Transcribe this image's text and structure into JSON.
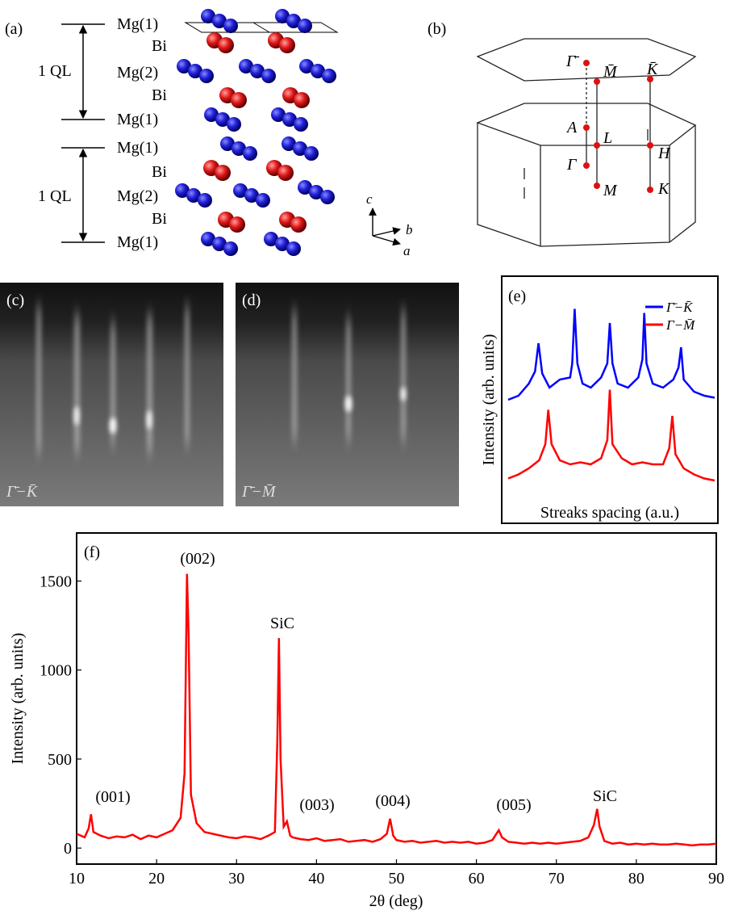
{
  "panel_labels": [
    "(a)",
    "(b)",
    "(c)",
    "(d)",
    "(e)",
    "(f)"
  ],
  "crystal_structure": {
    "layers": [
      "Mg(1)",
      "Bi",
      "Mg(2)",
      "Bi",
      "Mg(1)",
      "Mg(1)",
      "Bi",
      "Mg(2)",
      "Bi",
      "Mg(1)"
    ],
    "ql_labels": [
      "1 QL",
      "1 QL"
    ],
    "axes": [
      "c",
      "b",
      "a"
    ]
  },
  "brillouin_zone": {
    "points": [
      "Γ̄",
      "M̄",
      "K̄",
      "A",
      "L",
      "H",
      "Γ",
      "M",
      "K"
    ]
  },
  "rheed": {
    "labels": [
      "Γ̄−K̄",
      "Γ̄−M̄"
    ]
  },
  "chart_data": [
    {
      "type": "line",
      "xlabel": "Streaks spacing (a.u.)",
      "ylabel": "Intensity (arb. units)",
      "xlim": [
        0,
        100
      ],
      "ylim": [
        0,
        10
      ],
      "legend": "upper right",
      "series": [
        {
          "name": "Γ̄−K̄",
          "color": "#0000ff",
          "x": [
            0,
            5,
            10,
            13,
            14.7,
            16.5,
            20,
            25,
            30,
            31,
            32.2,
            33.5,
            36,
            40,
            45,
            48,
            49.2,
            50.5,
            53,
            58,
            63,
            65,
            65.9,
            67,
            70,
            75,
            80,
            82.5,
            83.7,
            85,
            90,
            95,
            100
          ],
          "values": [
            4.2,
            4.4,
            5.0,
            5.6,
            7.0,
            5.5,
            4.8,
            5.2,
            5.3,
            6.0,
            8.7,
            6.0,
            5.0,
            4.8,
            5.3,
            6.0,
            8.0,
            6.0,
            5.0,
            4.8,
            5.3,
            6.2,
            8.5,
            6.0,
            5.0,
            4.8,
            5.2,
            5.8,
            6.8,
            5.2,
            4.6,
            4.4,
            4.3
          ]
        },
        {
          "name": "Γ−M̄",
          "color": "#ff0000",
          "x": [
            0,
            5,
            10,
            15,
            18,
            19.4,
            21,
            25,
            30,
            35,
            40,
            45,
            48,
            49.2,
            50.5,
            55,
            60,
            65,
            70,
            75,
            78,
            79.5,
            81,
            85,
            90,
            95,
            100
          ],
          "values": [
            0.3,
            0.5,
            0.8,
            1.2,
            2.0,
            3.7,
            2.0,
            1.2,
            1.0,
            1.1,
            1.0,
            1.3,
            2.2,
            4.7,
            2.0,
            1.3,
            1.0,
            1.1,
            1.0,
            1.0,
            1.8,
            3.4,
            1.5,
            0.8,
            0.5,
            0.3,
            0.2
          ]
        }
      ]
    },
    {
      "type": "line",
      "xlabel": "2θ (deg)",
      "ylabel": "Intensity (arb. units)",
      "color": "#ff0000",
      "xlim": [
        10,
        90
      ],
      "ylim": [
        -90,
        1770
      ],
      "xticks": [
        10,
        20,
        30,
        40,
        50,
        60,
        70,
        80,
        90
      ],
      "yticks": [
        0,
        500,
        1000,
        1500
      ],
      "annotations": [
        "(001)",
        "(002)",
        "SiC",
        "(003)",
        "(004)",
        "(005)",
        "SiC"
      ],
      "x": [
        10,
        11,
        11.5,
        11.8,
        12.1,
        13,
        14,
        15,
        16,
        17,
        18,
        19,
        20,
        21,
        22,
        23,
        23.5,
        23.8,
        24,
        24.3,
        25,
        26,
        27,
        28,
        29,
        30,
        31,
        32,
        33,
        34,
        34.8,
        35.1,
        35.3,
        35.5,
        35.9,
        36.3,
        36.7,
        37,
        38,
        39,
        40,
        41,
        42,
        43,
        44,
        45,
        46,
        47,
        48,
        48.8,
        49.2,
        49.6,
        50,
        51,
        52,
        53,
        54,
        55,
        56,
        57,
        58,
        59,
        60,
        61,
        62,
        62.5,
        62.8,
        63.2,
        64,
        65,
        66,
        67,
        68,
        69,
        70,
        71,
        72,
        73,
        74,
        74.7,
        75.1,
        75.4,
        76,
        77,
        78,
        79,
        80,
        81,
        82,
        83,
        84,
        85,
        86,
        87,
        88,
        89,
        90
      ],
      "values": [
        80,
        60,
        110,
        190,
        90,
        70,
        55,
        65,
        60,
        75,
        50,
        70,
        60,
        80,
        100,
        170,
        420,
        1540,
        1200,
        300,
        140,
        90,
        80,
        70,
        60,
        55,
        65,
        60,
        50,
        70,
        90,
        600,
        1180,
        500,
        120,
        150,
        70,
        60,
        50,
        45,
        55,
        40,
        45,
        50,
        35,
        40,
        45,
        35,
        50,
        80,
        165,
        70,
        45,
        35,
        40,
        30,
        35,
        40,
        30,
        35,
        30,
        35,
        25,
        30,
        45,
        80,
        100,
        60,
        35,
        30,
        25,
        30,
        25,
        30,
        25,
        30,
        35,
        40,
        60,
        130,
        220,
        120,
        40,
        25,
        30,
        20,
        25,
        20,
        25,
        20,
        20,
        25,
        20,
        15,
        20,
        20,
        25
      ]
    }
  ]
}
